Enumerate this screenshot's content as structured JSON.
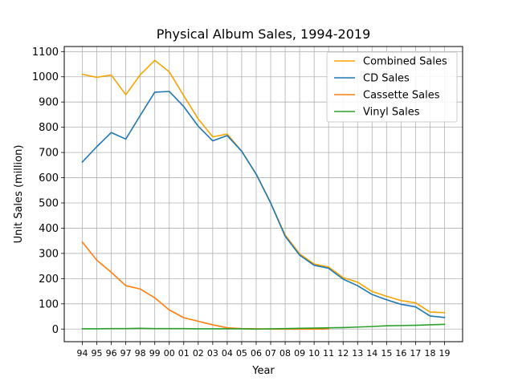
{
  "chart_data": {
    "type": "line",
    "title": "Physical Album Sales, 1994-2019",
    "xlabel": "Year",
    "ylabel": "Unit Sales (million)",
    "categories": [
      "94",
      "95",
      "96",
      "97",
      "98",
      "99",
      "00",
      "01",
      "02",
      "03",
      "04",
      "05",
      "06",
      "07",
      "08",
      "09",
      "10",
      "11",
      "12",
      "13",
      "14",
      "15",
      "16",
      "17",
      "18",
      "19"
    ],
    "ylim": [
      -50,
      1120
    ],
    "yticks": [
      0,
      100,
      200,
      300,
      400,
      500,
      600,
      700,
      800,
      900,
      1000,
      1100
    ],
    "grid": true,
    "legend_position": "top-right",
    "series": [
      {
        "name": "Combined Sales",
        "color": "#f5a300",
        "values": [
          1010,
          998,
          1007,
          929,
          1008,
          1065,
          1020,
          925,
          833,
          762,
          773,
          705,
          614,
          500,
          373,
          298,
          258,
          246,
          204,
          186,
          149,
          130,
          113,
          104,
          68,
          65
        ]
      },
      {
        "name": "CD Sales",
        "color": "#1f77b4",
        "values": [
          662,
          723,
          779,
          753,
          847,
          939,
          942,
          882,
          804,
          746,
          767,
          705,
          614,
          500,
          368,
          293,
          253,
          241,
          198,
          172,
          137,
          116,
          98,
          88,
          52,
          46
        ]
      },
      {
        "name": "Cassette Sales",
        "color": "#ff7f0e",
        "values": [
          345,
          273,
          225,
          172,
          159,
          124,
          76,
          45,
          31,
          17,
          5,
          2,
          1,
          0,
          0,
          0,
          0,
          1,
          null,
          null,
          null,
          null,
          null,
          null,
          null,
          null
        ]
      },
      {
        "name": "Vinyl Sales",
        "color": "#2ca02c",
        "values": [
          1,
          1,
          2,
          2,
          3,
          2,
          2,
          2,
          1,
          1,
          1,
          1,
          0,
          1,
          2,
          3,
          4,
          5,
          6,
          8,
          10,
          13,
          14,
          15,
          17,
          19
        ]
      }
    ]
  }
}
